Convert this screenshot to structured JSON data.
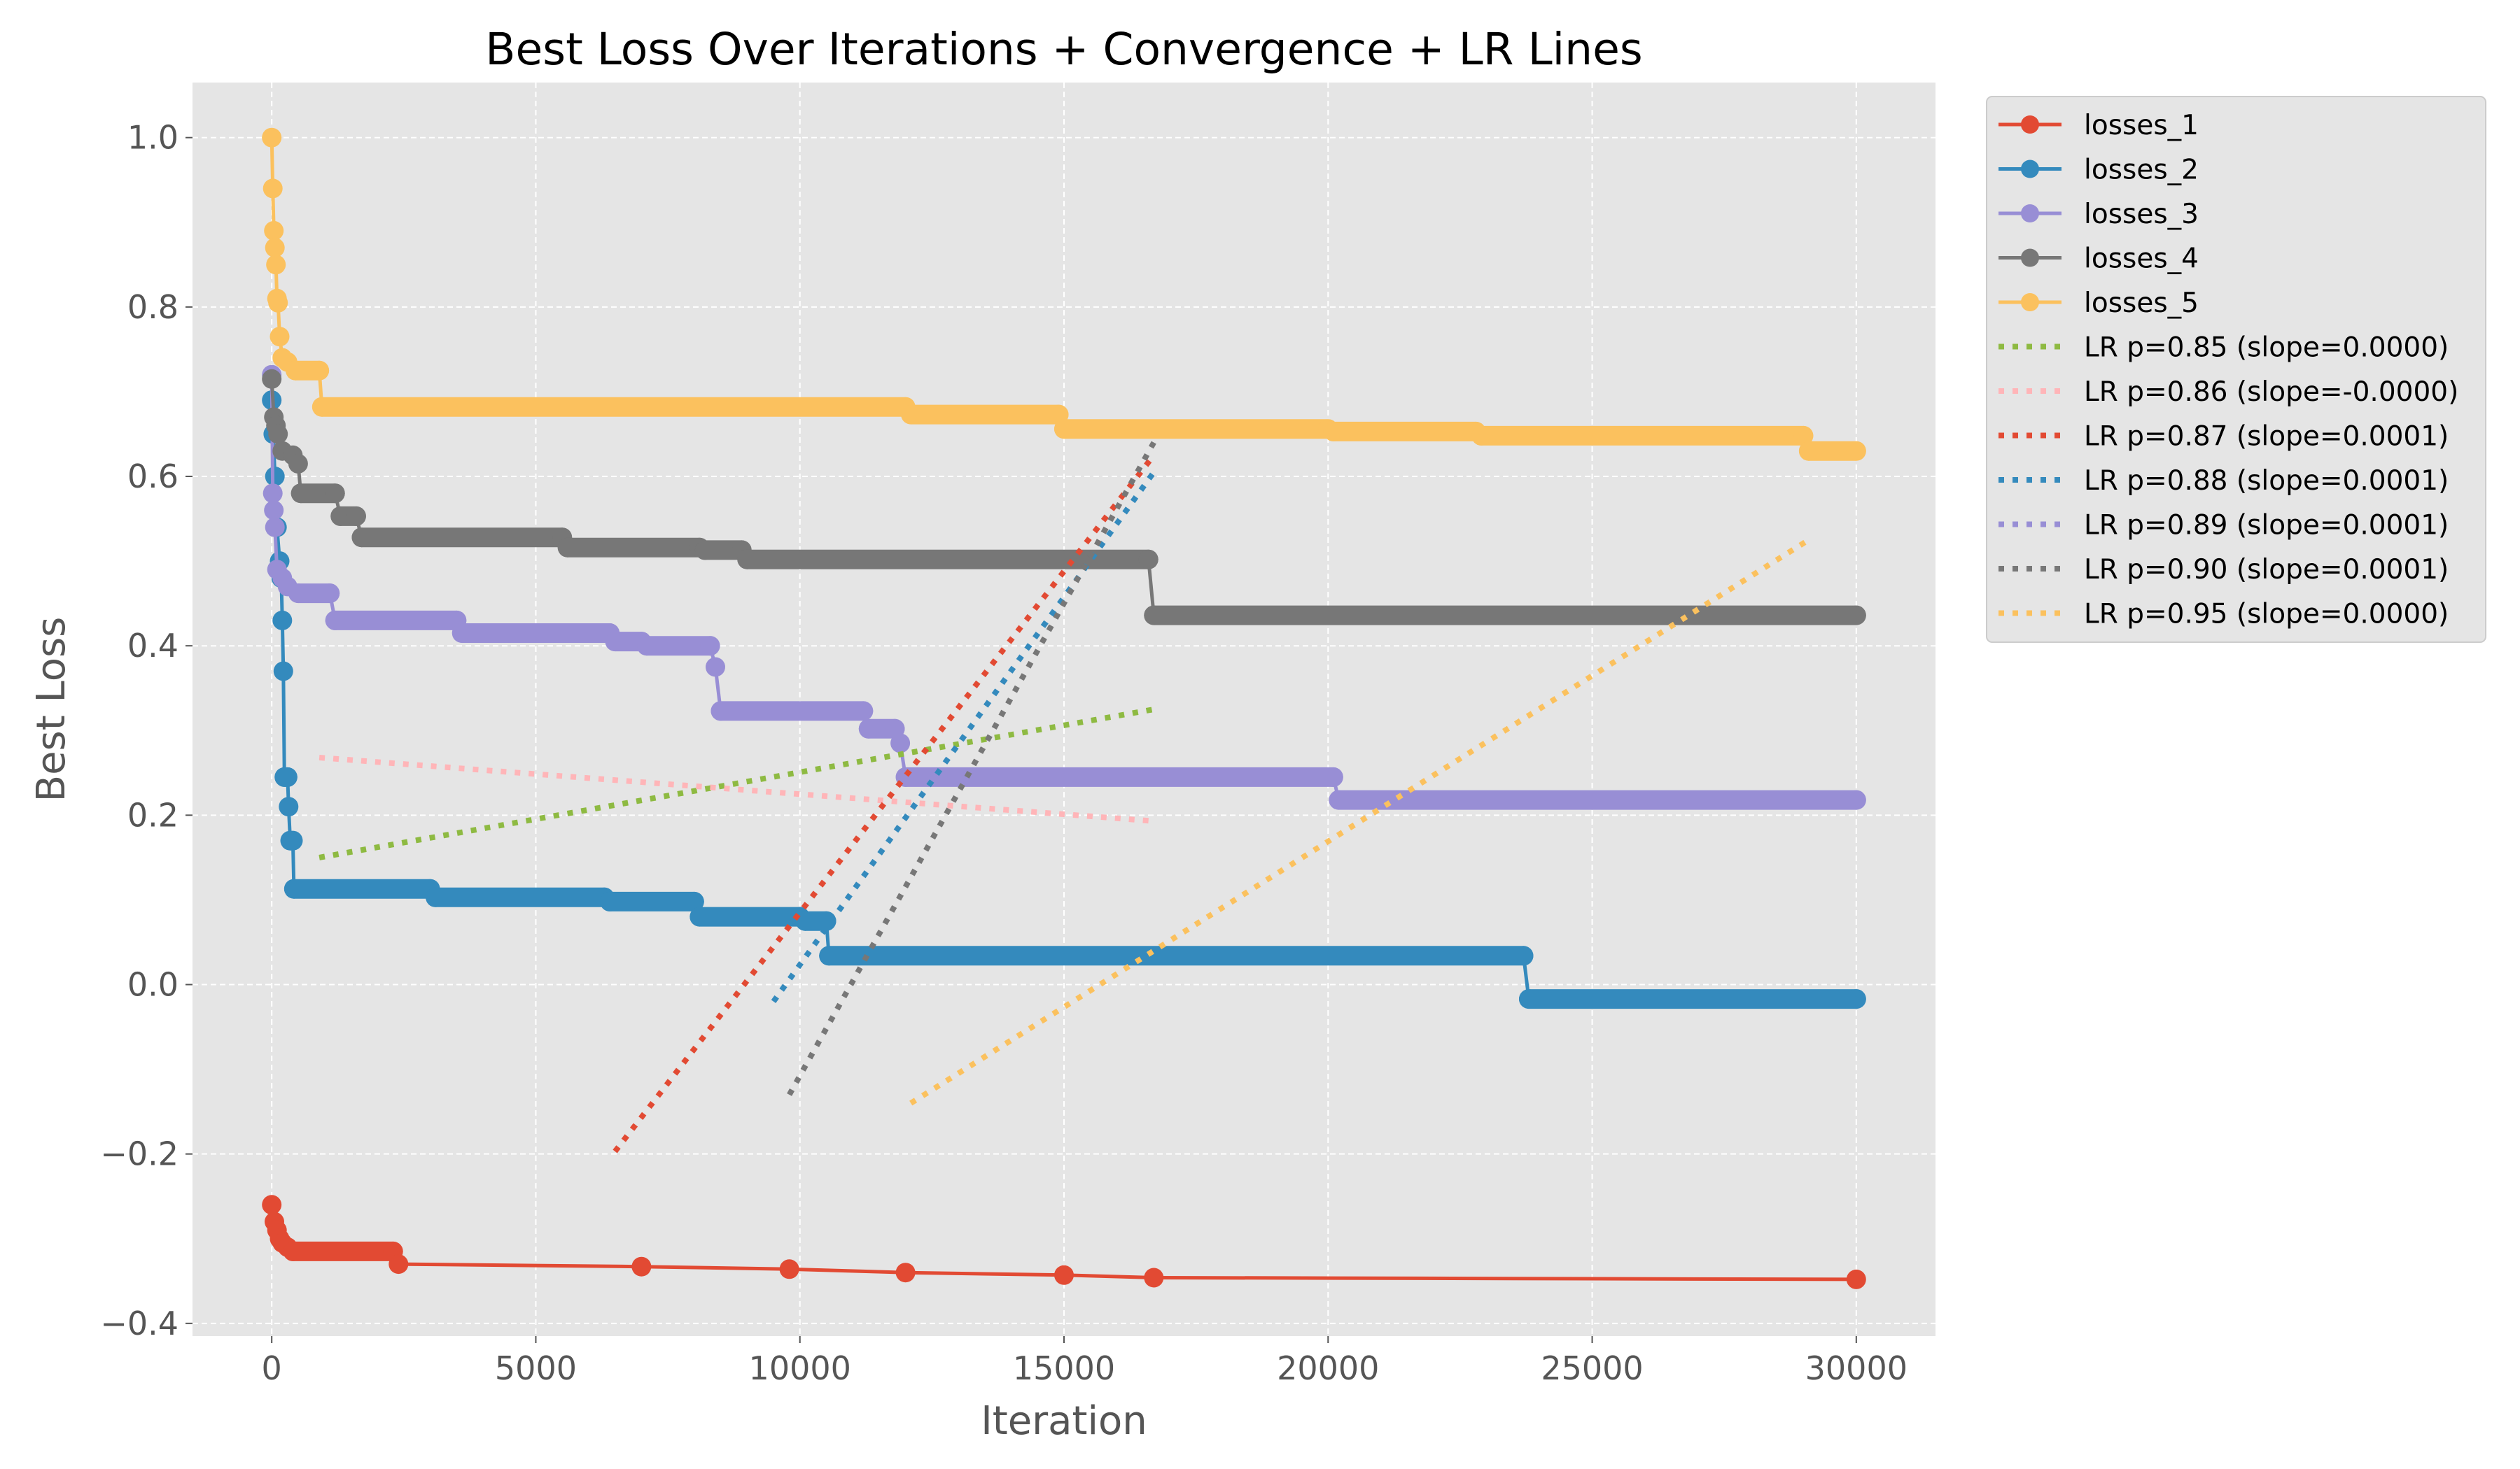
{
  "chart_data": {
    "type": "line",
    "title": "Best Loss Over Iterations + Convergence + LR Lines",
    "xlabel": "Iteration",
    "ylabel": "Best Loss",
    "xlim": [
      -1500,
      31500
    ],
    "ylim": [
      -0.415,
      1.065
    ],
    "x_ticks": [
      0,
      5000,
      10000,
      15000,
      20000,
      25000,
      30000
    ],
    "x_tick_labels": [
      "0",
      "5000",
      "10000",
      "15000",
      "20000",
      "25000",
      "30000"
    ],
    "y_ticks": [
      1.0,
      0.8,
      0.6,
      0.4,
      0.2,
      0.0,
      -0.2,
      -0.4
    ],
    "y_tick_labels": [
      "1.0",
      "0.8",
      "0.6",
      "0.4",
      "0.2",
      "0.0",
      "−0.2",
      "−0.4"
    ],
    "grid": true,
    "legend_position": "outside-right",
    "series": [
      {
        "name": "losses_1",
        "color": "#E24A33",
        "style": "solid-marker",
        "points": [
          [
            0,
            -0.26
          ],
          [
            50,
            -0.28
          ],
          [
            100,
            -0.29
          ],
          [
            150,
            -0.3
          ],
          [
            200,
            -0.305
          ],
          [
            300,
            -0.31
          ],
          [
            400,
            -0.315
          ],
          [
            2300,
            -0.315
          ],
          [
            2400,
            -0.33
          ],
          [
            7000,
            -0.333
          ],
          [
            9800,
            -0.336
          ],
          [
            12000,
            -0.34
          ],
          [
            15000,
            -0.343
          ],
          [
            16700,
            -0.346
          ],
          [
            30000,
            -0.348
          ]
        ]
      },
      {
        "name": "losses_2",
        "color": "#348ABD",
        "style": "solid-marker",
        "points": [
          [
            0,
            0.69
          ],
          [
            30,
            0.65
          ],
          [
            60,
            0.6
          ],
          [
            100,
            0.54
          ],
          [
            150,
            0.5
          ],
          [
            180,
            0.48
          ],
          [
            200,
            0.43
          ],
          [
            220,
            0.37
          ],
          [
            240,
            0.245
          ],
          [
            300,
            0.245
          ],
          [
            320,
            0.21
          ],
          [
            350,
            0.17
          ],
          [
            400,
            0.17
          ],
          [
            420,
            0.113
          ],
          [
            3000,
            0.113
          ],
          [
            3100,
            0.103
          ],
          [
            6300,
            0.103
          ],
          [
            6400,
            0.098
          ],
          [
            8000,
            0.098
          ],
          [
            8100,
            0.08
          ],
          [
            10000,
            0.08
          ],
          [
            10100,
            0.075
          ],
          [
            10500,
            0.075
          ],
          [
            10550,
            0.034
          ],
          [
            23700,
            0.034
          ],
          [
            23800,
            -0.017
          ],
          [
            30000,
            -0.017
          ]
        ]
      },
      {
        "name": "losses_3",
        "color": "#988ED5",
        "style": "solid-marker",
        "points": [
          [
            0,
            0.72
          ],
          [
            20,
            0.58
          ],
          [
            40,
            0.56
          ],
          [
            60,
            0.54
          ],
          [
            100,
            0.49
          ],
          [
            200,
            0.48
          ],
          [
            300,
            0.47
          ],
          [
            500,
            0.462
          ],
          [
            1100,
            0.462
          ],
          [
            1200,
            0.43
          ],
          [
            3500,
            0.43
          ],
          [
            3600,
            0.415
          ],
          [
            6400,
            0.415
          ],
          [
            6500,
            0.405
          ],
          [
            7000,
            0.405
          ],
          [
            7100,
            0.4
          ],
          [
            8300,
            0.4
          ],
          [
            8400,
            0.375
          ],
          [
            8500,
            0.323
          ],
          [
            11200,
            0.323
          ],
          [
            11300,
            0.302
          ],
          [
            11800,
            0.302
          ],
          [
            11900,
            0.285
          ],
          [
            12000,
            0.245
          ],
          [
            20100,
            0.245
          ],
          [
            20200,
            0.218
          ],
          [
            30000,
            0.218
          ]
        ]
      },
      {
        "name": "losses_4",
        "color": "#777777",
        "style": "solid-marker",
        "points": [
          [
            0,
            0.715
          ],
          [
            40,
            0.67
          ],
          [
            80,
            0.66
          ],
          [
            120,
            0.65
          ],
          [
            200,
            0.63
          ],
          [
            400,
            0.625
          ],
          [
            500,
            0.615
          ],
          [
            550,
            0.58
          ],
          [
            1200,
            0.58
          ],
          [
            1300,
            0.553
          ],
          [
            1600,
            0.553
          ],
          [
            1700,
            0.528
          ],
          [
            5500,
            0.528
          ],
          [
            5600,
            0.516
          ],
          [
            8100,
            0.516
          ],
          [
            8200,
            0.513
          ],
          [
            8900,
            0.513
          ],
          [
            9000,
            0.502
          ],
          [
            16600,
            0.502
          ],
          [
            16700,
            0.436
          ],
          [
            30000,
            0.436
          ]
        ]
      },
      {
        "name": "losses_5",
        "color": "#FBC15E",
        "style": "solid-marker",
        "points": [
          [
            0,
            1.0
          ],
          [
            20,
            0.94
          ],
          [
            40,
            0.89
          ],
          [
            60,
            0.87
          ],
          [
            80,
            0.85
          ],
          [
            100,
            0.81
          ],
          [
            120,
            0.805
          ],
          [
            150,
            0.765
          ],
          [
            200,
            0.74
          ],
          [
            300,
            0.735
          ],
          [
            450,
            0.725
          ],
          [
            900,
            0.725
          ],
          [
            950,
            0.682
          ],
          [
            12000,
            0.682
          ],
          [
            12100,
            0.673
          ],
          [
            14900,
            0.673
          ],
          [
            15000,
            0.656
          ],
          [
            20000,
            0.656
          ],
          [
            20100,
            0.653
          ],
          [
            22800,
            0.653
          ],
          [
            22900,
            0.648
          ],
          [
            29000,
            0.648
          ],
          [
            29100,
            0.63
          ],
          [
            30000,
            0.63
          ]
        ]
      },
      {
        "name": "LR p=0.85 (slope=0.0000)",
        "color": "#8EBA42",
        "style": "dotted",
        "points": [
          [
            900,
            0.15
          ],
          [
            16700,
            0.325
          ]
        ]
      },
      {
        "name": "LR p=0.86 (slope=-0.0000)",
        "color": "#FFB5B8",
        "style": "dotted",
        "points": [
          [
            900,
            0.268
          ],
          [
            16700,
            0.193
          ]
        ]
      },
      {
        "name": "LR p=0.87 (slope=0.0001)",
        "color": "#E24A33",
        "style": "dotted",
        "points": [
          [
            6500,
            -0.197
          ],
          [
            16700,
            0.625
          ]
        ]
      },
      {
        "name": "LR p=0.88 (slope=0.0001)",
        "color": "#348ABD",
        "style": "dotted",
        "points": [
          [
            9500,
            -0.02
          ],
          [
            16700,
            0.605
          ]
        ]
      },
      {
        "name": "LR p=0.89 (slope=0.0001)",
        "color": "#988ED5",
        "style": "dotted",
        "points": []
      },
      {
        "name": "LR p=0.90 (slope=0.0001)",
        "color": "#777777",
        "style": "dotted",
        "points": [
          [
            9800,
            -0.13
          ],
          [
            16700,
            0.64
          ]
        ]
      },
      {
        "name": "LR p=0.95 (slope=0.0000)",
        "color": "#FBC15E",
        "style": "dotted",
        "points": [
          [
            12100,
            -0.14
          ],
          [
            29100,
            0.525
          ]
        ]
      }
    ]
  }
}
